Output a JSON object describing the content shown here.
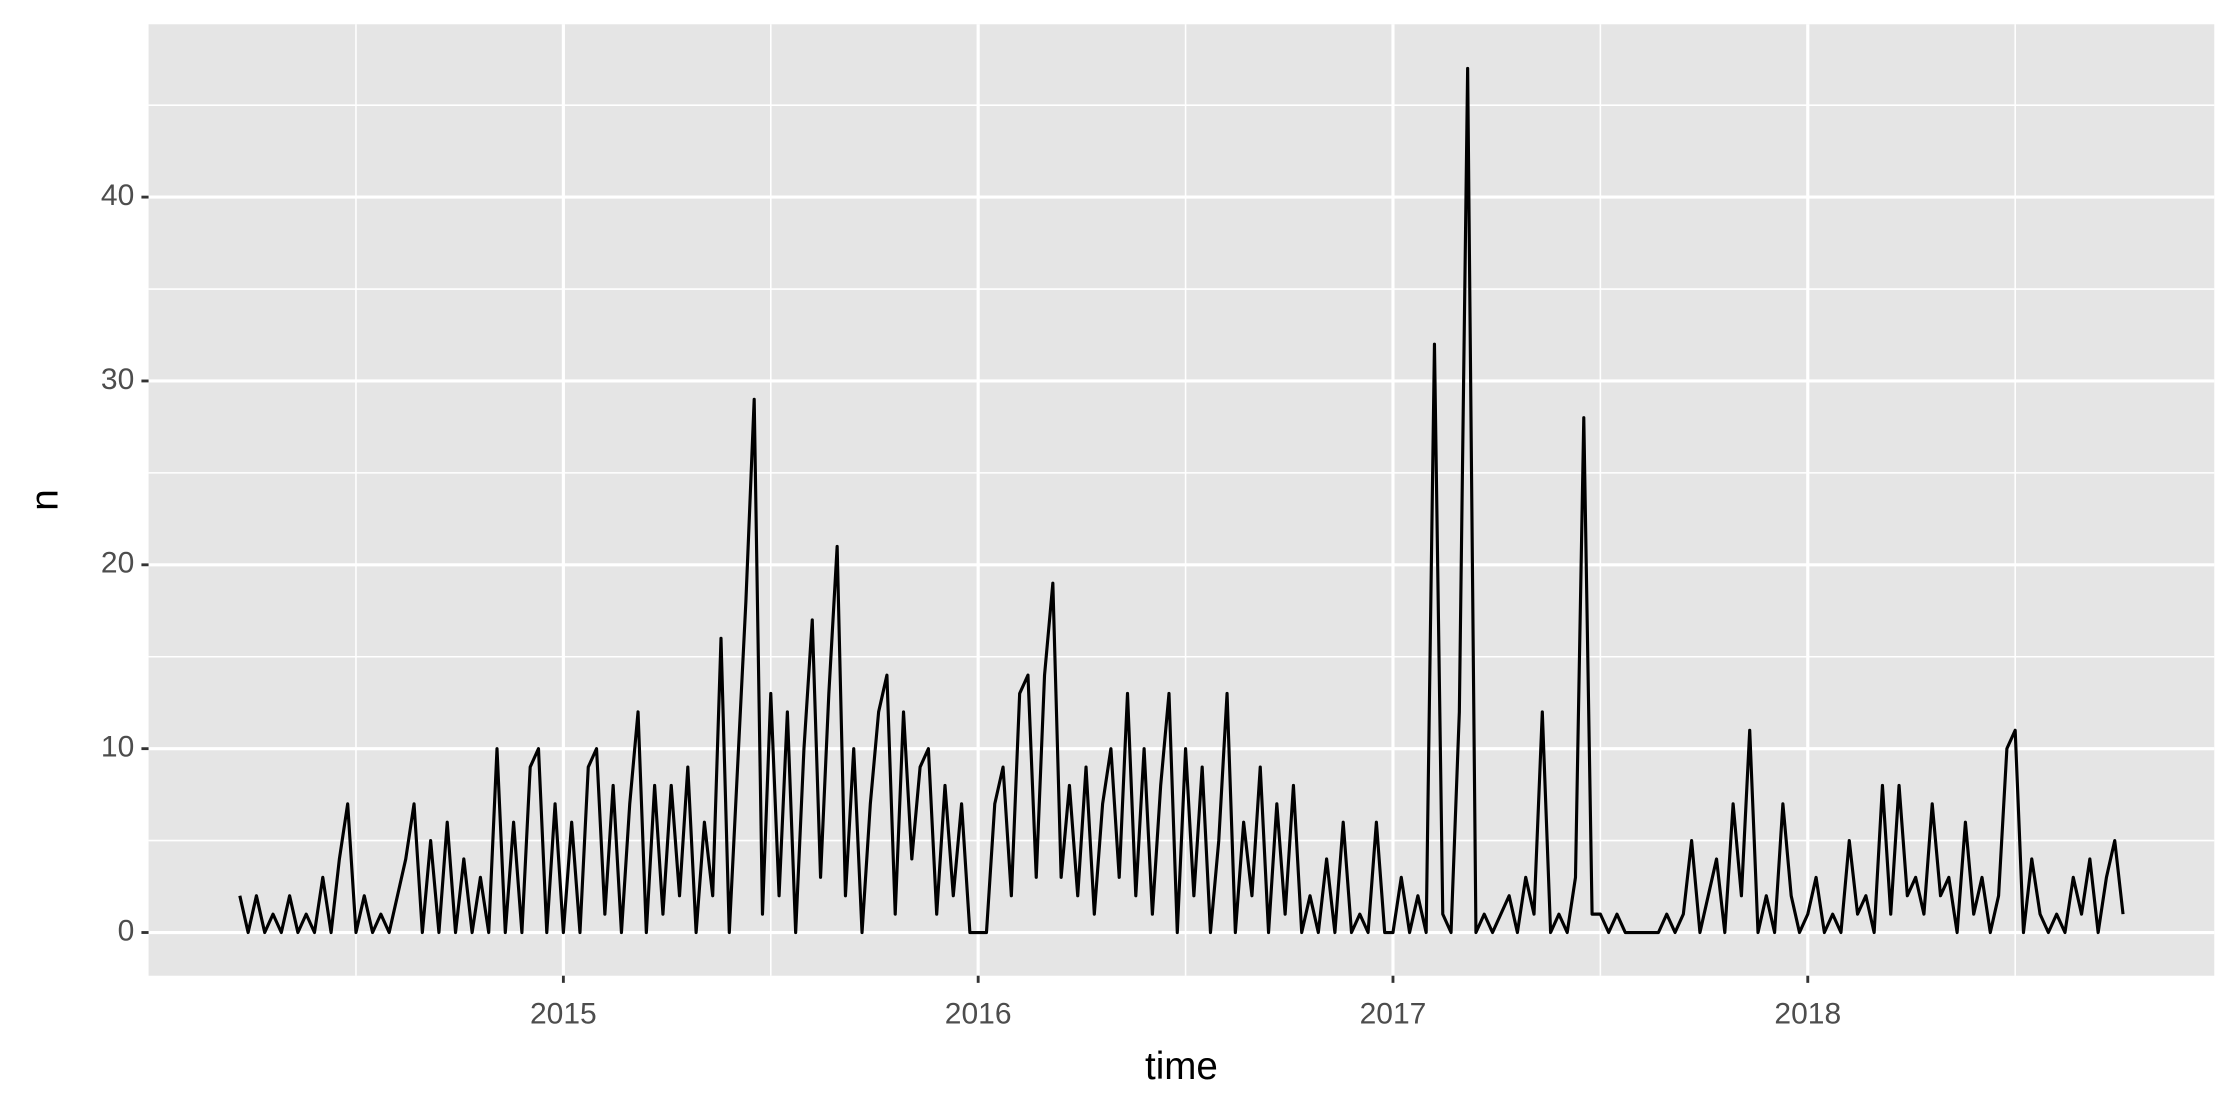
{
  "chart_data": {
    "type": "line",
    "x_label": "time",
    "y_label": "n",
    "color": "#000000",
    "grid": true,
    "xlim": [
      2014.0,
      2018.98
    ],
    "ylim": [
      -2.35,
      49.4
    ],
    "xticks": [
      2015,
      2016,
      2017,
      2018
    ],
    "yticks": [
      0,
      10,
      20,
      30,
      40
    ],
    "xminor": [
      2014.5,
      2015.5,
      2016.5,
      2017.5,
      2018.5
    ],
    "yminor": [
      5,
      15,
      25,
      35,
      45
    ],
    "x": [
      2014.22,
      2014.24,
      2014.26,
      2014.28,
      2014.3,
      2014.32,
      2014.34,
      2014.36,
      2014.38,
      2014.4,
      2014.42,
      2014.44,
      2014.46,
      2014.48,
      2014.5,
      2014.52,
      2014.54,
      2014.56,
      2014.58,
      2014.6,
      2014.62,
      2014.64,
      2014.66,
      2014.68,
      2014.7,
      2014.72,
      2014.74,
      2014.76,
      2014.78,
      2014.8,
      2014.82,
      2014.84,
      2014.86,
      2014.88,
      2014.9,
      2014.92,
      2014.94,
      2014.96,
      2014.98,
      2015.0,
      2015.02,
      2015.04,
      2015.06,
      2015.08,
      2015.1,
      2015.12,
      2015.14,
      2015.16,
      2015.18,
      2015.2,
      2015.22,
      2015.24,
      2015.26,
      2015.28,
      2015.3,
      2015.32,
      2015.34,
      2015.36,
      2015.38,
      2015.4,
      2015.42,
      2015.44,
      2015.46,
      2015.48,
      2015.5,
      2015.52,
      2015.54,
      2015.56,
      2015.58,
      2015.6,
      2015.62,
      2015.64,
      2015.66,
      2015.68,
      2015.7,
      2015.72,
      2015.74,
      2015.76,
      2015.78,
      2015.8,
      2015.82,
      2015.84,
      2015.86,
      2015.88,
      2015.9,
      2015.92,
      2015.94,
      2015.96,
      2015.98,
      2016.0,
      2016.02,
      2016.04,
      2016.06,
      2016.08,
      2016.1,
      2016.12,
      2016.14,
      2016.16,
      2016.18,
      2016.2,
      2016.22,
      2016.24,
      2016.26,
      2016.28,
      2016.3,
      2016.32,
      2016.34,
      2016.36,
      2016.38,
      2016.4,
      2016.42,
      2016.44,
      2016.46,
      2016.48,
      2016.5,
      2016.52,
      2016.54,
      2016.56,
      2016.58,
      2016.6,
      2016.62,
      2016.64,
      2016.66,
      2016.68,
      2016.7,
      2016.72,
      2016.74,
      2016.76,
      2016.78,
      2016.8,
      2016.82,
      2016.84,
      2016.86,
      2016.88,
      2016.9,
      2016.92,
      2016.94,
      2016.96,
      2016.98,
      2017.0,
      2017.02,
      2017.04,
      2017.06,
      2017.08,
      2017.1,
      2017.12,
      2017.14,
      2017.16,
      2017.18,
      2017.2,
      2017.22,
      2017.24,
      2017.26,
      2017.28,
      2017.3,
      2017.32,
      2017.34,
      2017.36,
      2017.38,
      2017.4,
      2017.42,
      2017.44,
      2017.46,
      2017.48,
      2017.5,
      2017.52,
      2017.54,
      2017.56,
      2017.58,
      2017.6,
      2017.62,
      2017.64,
      2017.66,
      2017.68,
      2017.7,
      2017.72,
      2017.74,
      2017.76,
      2017.78,
      2017.8,
      2017.82,
      2017.84,
      2017.86,
      2017.88,
      2017.9,
      2017.92,
      2017.94,
      2017.96,
      2017.98,
      2018.0,
      2018.02,
      2018.04,
      2018.06,
      2018.08,
      2018.1,
      2018.12,
      2018.14,
      2018.16,
      2018.18,
      2018.2,
      2018.22,
      2018.24,
      2018.26,
      2018.28,
      2018.3,
      2018.32,
      2018.34,
      2018.36,
      2018.38,
      2018.4,
      2018.42,
      2018.44,
      2018.46,
      2018.48,
      2018.5,
      2018.52,
      2018.54,
      2018.56,
      2018.58,
      2018.6,
      2018.62,
      2018.64,
      2018.66,
      2018.68,
      2018.7,
      2018.72,
      2018.74,
      2018.76
    ],
    "values": [
      2,
      0,
      2,
      0,
      1,
      0,
      2,
      0,
      1,
      0,
      3,
      0,
      4,
      7,
      0,
      2,
      0,
      1,
      0,
      2,
      4,
      7,
      0,
      5,
      0,
      6,
      0,
      4,
      0,
      3,
      0,
      10,
      0,
      6,
      0,
      9,
      10,
      0,
      7,
      0,
      6,
      0,
      9,
      10,
      1,
      8,
      0,
      7,
      12,
      0,
      8,
      1,
      8,
      2,
      9,
      0,
      6,
      2,
      16,
      0,
      9,
      18,
      29,
      1,
      13,
      2,
      12,
      0,
      10,
      17,
      3,
      13,
      21,
      2,
      10,
      0,
      7,
      12,
      14,
      1,
      12,
      4,
      9,
      10,
      1,
      8,
      2,
      7,
      0,
      0,
      0,
      7,
      9,
      2,
      13,
      14,
      3,
      14,
      19,
      3,
      8,
      2,
      9,
      1,
      7,
      10,
      3,
      13,
      2,
      10,
      1,
      8,
      13,
      0,
      10,
      2,
      9,
      0,
      5,
      13,
      0,
      6,
      2,
      9,
      0,
      7,
      1,
      8,
      0,
      2,
      0,
      4,
      0,
      6,
      0,
      1,
      0,
      6,
      0,
      0,
      3,
      0,
      2,
      0,
      32,
      1,
      0,
      12,
      47,
      0,
      1,
      0,
      1,
      2,
      0,
      3,
      1,
      12,
      0,
      1,
      0,
      3,
      28,
      1,
      1,
      0,
      1,
      0,
      0,
      0,
      0,
      0,
      1,
      0,
      1,
      5,
      0,
      2,
      4,
      0,
      7,
      2,
      11,
      0,
      2,
      0,
      7,
      2,
      0,
      1,
      3,
      0,
      1,
      0,
      5,
      1,
      2,
      0,
      8,
      1,
      8,
      2,
      3,
      1,
      7,
      2,
      3,
      0,
      6,
      1,
      3,
      0,
      2,
      10,
      11,
      0,
      4,
      1,
      0,
      1,
      0,
      3,
      1,
      4,
      0,
      3,
      5,
      1
    ]
  }
}
